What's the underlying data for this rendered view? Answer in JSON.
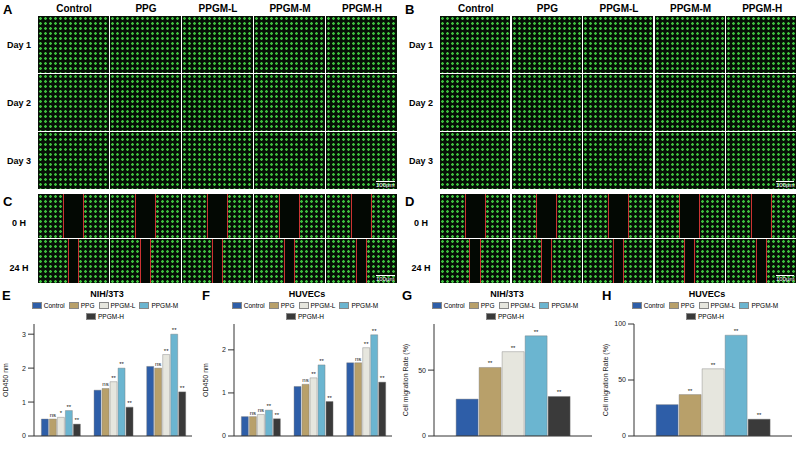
{
  "image_panels": [
    {
      "letter": "A",
      "columns": [
        "Control",
        "PPG",
        "PPGM-L",
        "PPGM-M",
        "PPGM-H"
      ],
      "rows": [
        "Day 1",
        "Day 2",
        "Day 3"
      ],
      "scale_bar": "100μm"
    },
    {
      "letter": "B",
      "columns": [
        "Control",
        "PPG",
        "PPGM-L",
        "PPGM-M",
        "PPGM-H"
      ],
      "rows": [
        "Day 1",
        "Day 2",
        "Day 3"
      ],
      "scale_bar": "100μm"
    },
    {
      "letter": "C",
      "rows": [
        "0 H",
        "24 H"
      ],
      "scale_bar": "100μm"
    },
    {
      "letter": "D",
      "rows": [
        "0 H",
        "24 H"
      ],
      "scale_bar": "100μm"
    }
  ],
  "chart_data": [
    {
      "panel": "E",
      "type": "bar",
      "title": "NIH/3T3",
      "y_label": "OD450 nm",
      "categories": [
        null,
        null,
        null
      ],
      "series": [
        {
          "name": "Control",
          "color": "#2e5ea8",
          "values": [
            0.5,
            1.35,
            2.05
          ],
          "significance": [
            null,
            null,
            null
          ]
        },
        {
          "name": "PPG",
          "color": "#b8a06a",
          "values": [
            0.5,
            1.4,
            2.0
          ],
          "significance": [
            "ns",
            "ns",
            "ns"
          ]
        },
        {
          "name": "PPGM-L",
          "color": "#e6e6de",
          "values": [
            0.55,
            1.6,
            2.4
          ],
          "significance": [
            "*",
            "**",
            "**"
          ]
        },
        {
          "name": "PPGM-M",
          "color": "#6bb5d0",
          "values": [
            0.75,
            2.0,
            3.0
          ],
          "significance": [
            "**",
            "**",
            "**"
          ]
        },
        {
          "name": "PPGM-H",
          "color": "#3a3a3a",
          "values": [
            0.35,
            0.85,
            1.3
          ],
          "significance": [
            "**",
            "**",
            "**"
          ]
        }
      ],
      "ylim": [
        0,
        3.3
      ],
      "yticks": [
        0,
        1,
        2,
        3
      ],
      "legend": "top",
      "tick_labels": "y"
    },
    {
      "panel": "F",
      "type": "bar",
      "title": "HUVECs",
      "y_label": "OD450 nm",
      "categories": [
        null,
        null,
        null
      ],
      "series": [
        {
          "name": "Control",
          "color": "#2e5ea8",
          "values": [
            0.45,
            1.15,
            1.7
          ],
          "significance": [
            null,
            null,
            null
          ]
        },
        {
          "name": "PPG",
          "color": "#b8a06a",
          "values": [
            0.45,
            1.2,
            1.7
          ],
          "significance": [
            "ns",
            "ns",
            "ns"
          ]
        },
        {
          "name": "PPGM-L",
          "color": "#e6e6de",
          "values": [
            0.5,
            1.35,
            2.05
          ],
          "significance": [
            "ns",
            "**",
            "**"
          ]
        },
        {
          "name": "PPGM-M",
          "color": "#6bb5d0",
          "values": [
            0.6,
            1.65,
            2.35
          ],
          "significance": [
            "**",
            "**",
            "**"
          ]
        },
        {
          "name": "PPGM-H",
          "color": "#3a3a3a",
          "values": [
            0.4,
            0.8,
            1.25
          ],
          "significance": [
            "**",
            "**",
            "**"
          ]
        }
      ],
      "ylim": [
        0,
        2.6
      ],
      "yticks": [
        0,
        1,
        2
      ],
      "legend": "top",
      "tick_labels": "y"
    },
    {
      "panel": "G",
      "type": "bar",
      "title": "NIH/3T3",
      "y_label": "Cell migration Rate (%)",
      "categories": [
        null
      ],
      "series": [
        {
          "name": "Control",
          "color": "#2e5ea8",
          "values": [
            28
          ],
          "significance": [
            null
          ]
        },
        {
          "name": "PPG",
          "color": "#b8a06a",
          "values": [
            52
          ],
          "significance": [
            "**"
          ]
        },
        {
          "name": "PPGM-L",
          "color": "#e6e6de",
          "values": [
            64
          ],
          "significance": [
            "**"
          ]
        },
        {
          "name": "PPGM-M",
          "color": "#6bb5d0",
          "values": [
            76
          ],
          "significance": [
            "**"
          ]
        },
        {
          "name": "PPGM-H",
          "color": "#3a3a3a",
          "values": [
            30
          ],
          "significance": [
            "**"
          ]
        }
      ],
      "ylim": [
        0,
        85
      ],
      "yticks": [
        0,
        50
      ],
      "legend": "top",
      "tick_labels": "y"
    },
    {
      "panel": "H",
      "type": "bar",
      "title": "HUVECs",
      "y_label": "Cell migration Rate (%)",
      "categories": [
        null
      ],
      "series": [
        {
          "name": "Control",
          "color": "#2e5ea8",
          "values": [
            28
          ],
          "significance": [
            null
          ]
        },
        {
          "name": "PPG",
          "color": "#b8a06a",
          "values": [
            37
          ],
          "significance": [
            "**"
          ]
        },
        {
          "name": "PPGM-L",
          "color": "#e6e6de",
          "values": [
            60
          ],
          "significance": [
            "**"
          ]
        },
        {
          "name": "PPGM-M",
          "color": "#6bb5d0",
          "values": [
            90
          ],
          "significance": [
            "**"
          ]
        },
        {
          "name": "PPGM-H",
          "color": "#3a3a3a",
          "values": [
            15
          ],
          "significance": [
            "**"
          ]
        }
      ],
      "ylim": [
        0,
        100
      ],
      "yticks": [
        0,
        50,
        100
      ],
      "legend": "top",
      "tick_labels": "y"
    }
  ]
}
